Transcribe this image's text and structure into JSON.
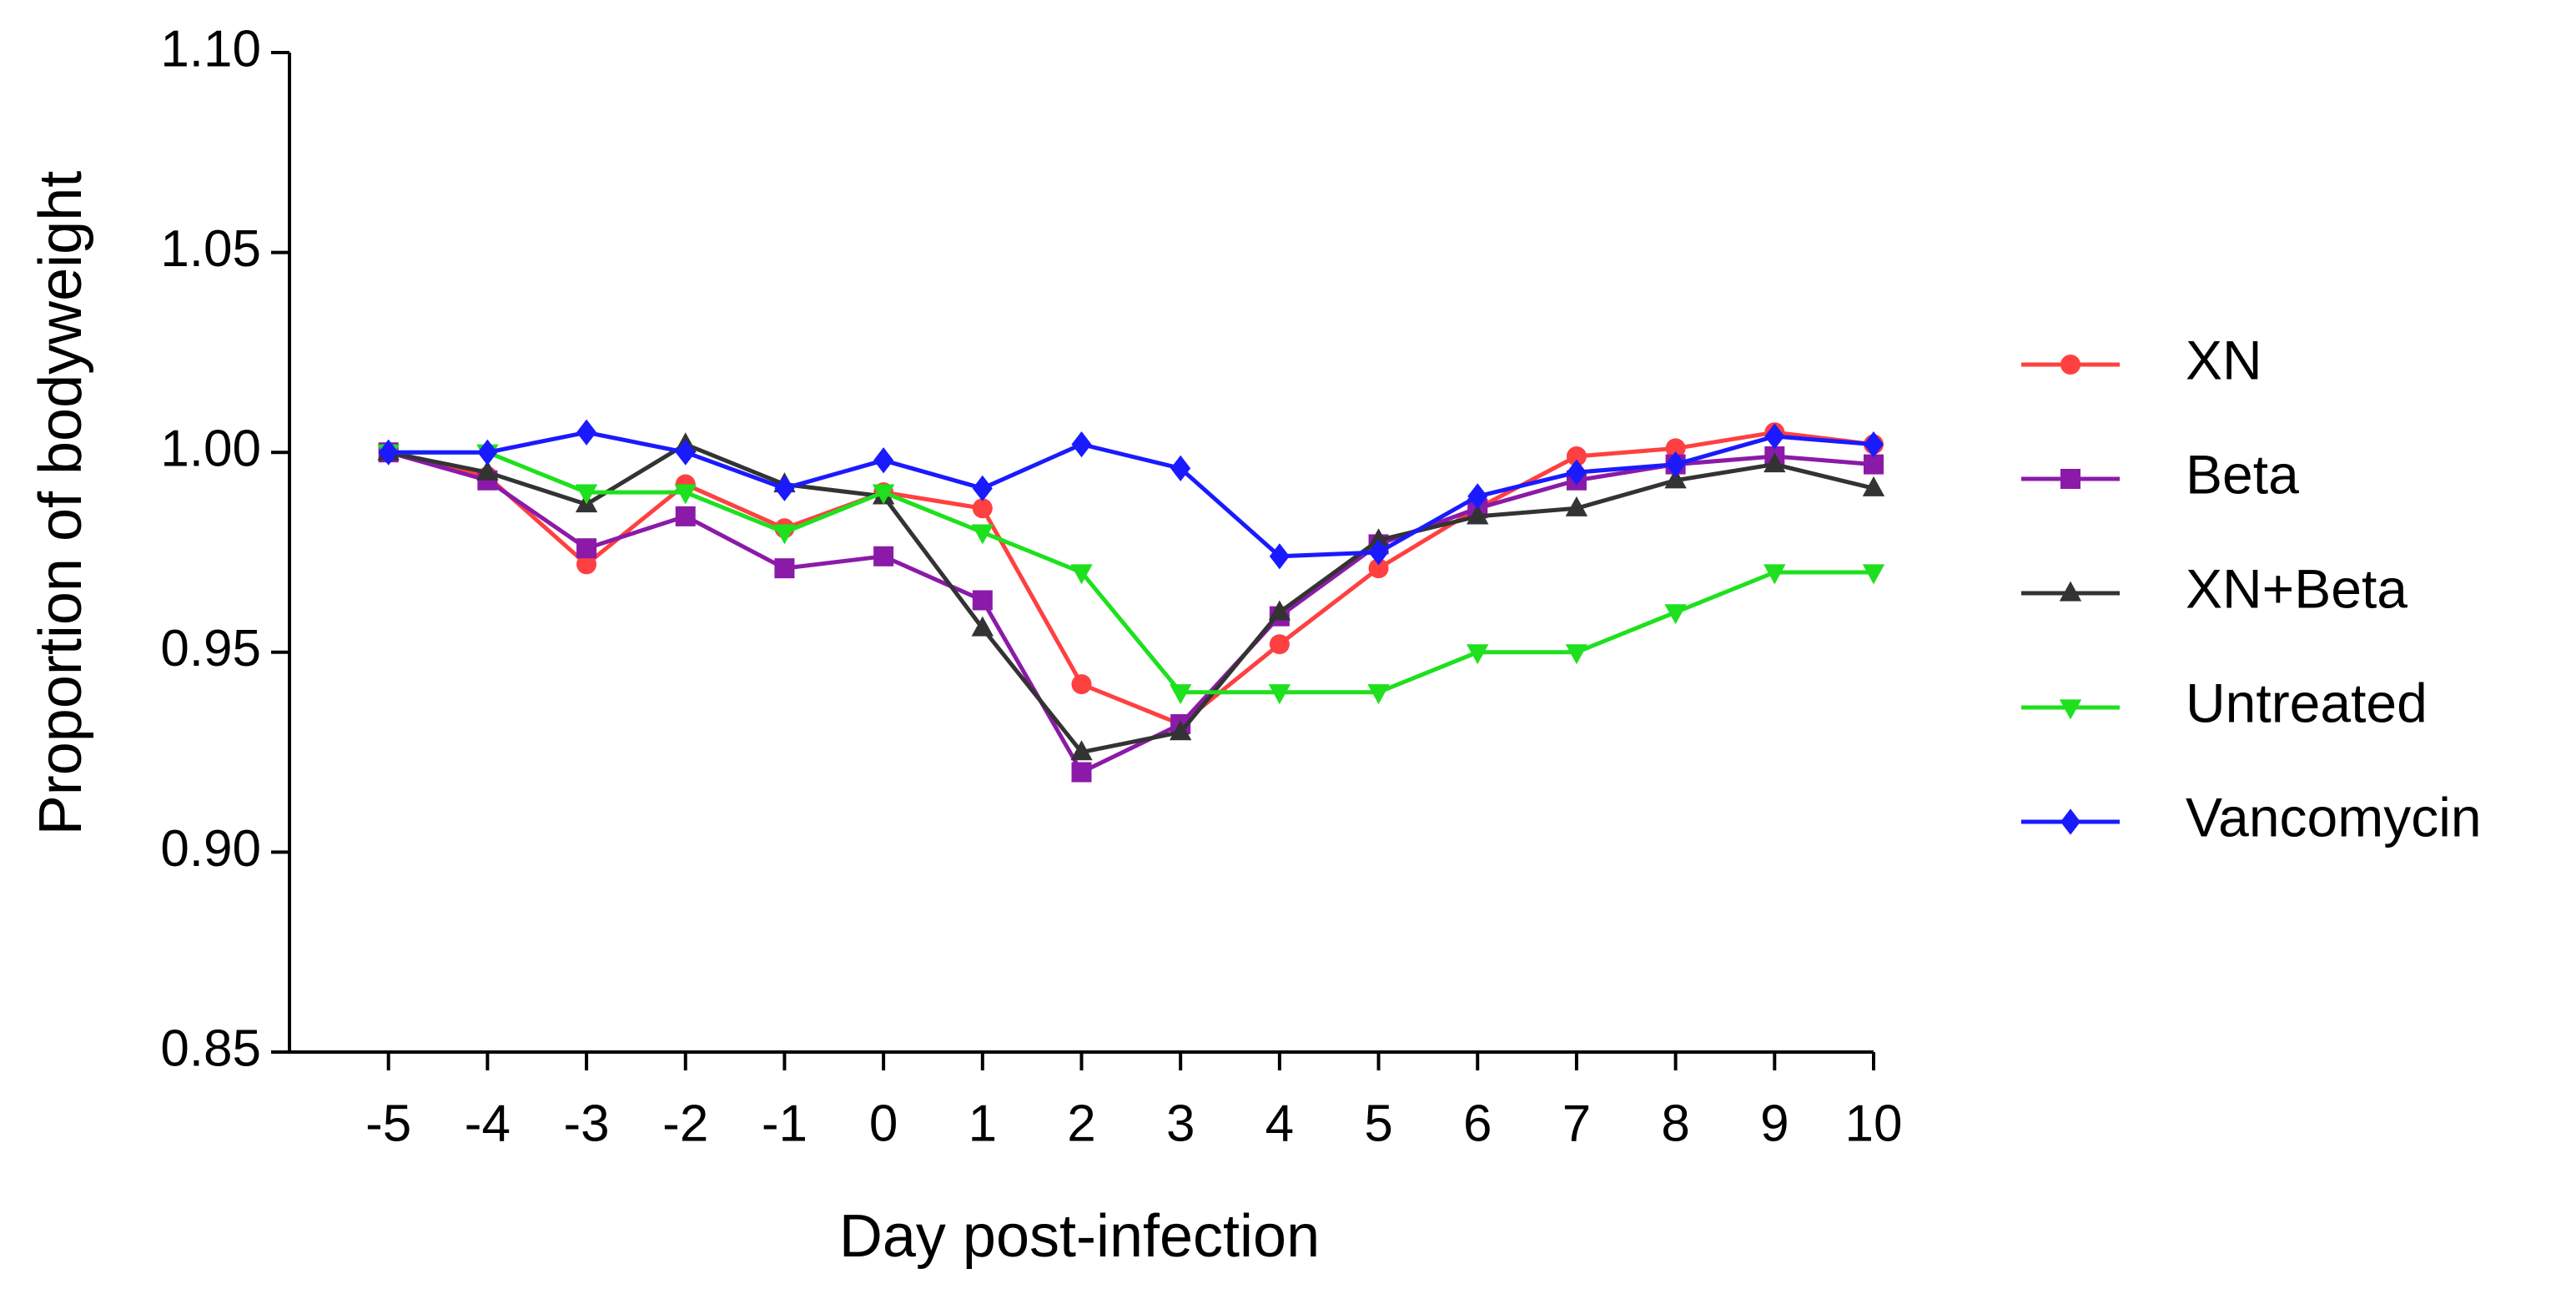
{
  "chart_data": {
    "type": "line",
    "x_label": "Day post-infection",
    "y_label": "Proportion of bodyweight",
    "x": [
      -5,
      -4,
      -3,
      -2,
      -1,
      0,
      1,
      2,
      3,
      4,
      5,
      6,
      7,
      8,
      9,
      10
    ],
    "xlim": [
      -6,
      10
    ],
    "xticks": [
      -5,
      -4,
      -3,
      -2,
      -1,
      0,
      1,
      2,
      3,
      4,
      5,
      6,
      7,
      8,
      9,
      10
    ],
    "ylim": [
      0.85,
      1.1
    ],
    "yticks": [
      0.85,
      {
        "value": 0.9,
        "label": "0.90"
      },
      0.95,
      {
        "value": 1.0,
        "label": "1.00"
      },
      1.05,
      {
        "value": 1.1,
        "label": "1.10"
      }
    ],
    "legend": "right",
    "series": [
      {
        "name": "XN",
        "color": "#ff4040",
        "marker": "circle",
        "values": [
          1.0,
          0.994,
          0.972,
          0.992,
          0.981,
          0.99,
          0.986,
          0.942,
          0.932,
          0.952,
          0.971,
          0.986,
          0.999,
          1.001,
          1.005,
          1.002
        ]
      },
      {
        "name": "Beta",
        "color": "#8b1aa8",
        "marker": "square",
        "values": [
          1.0,
          0.993,
          0.976,
          0.984,
          0.971,
          0.974,
          0.963,
          0.92,
          0.932,
          0.959,
          0.977,
          0.986,
          0.993,
          0.997,
          0.999,
          0.997
        ]
      },
      {
        "name": "XN+Beta",
        "color": "#333333",
        "marker": "triangle-up",
        "values": [
          1.0,
          0.995,
          0.987,
          1.002,
          0.992,
          0.989,
          0.956,
          0.925,
          0.93,
          0.96,
          0.978,
          0.984,
          0.986,
          0.993,
          0.997,
          0.991
        ]
      },
      {
        "name": "Untreated",
        "color": "#1ee01e",
        "marker": "triangle-down",
        "values": [
          1.0,
          1.0,
          0.99,
          0.99,
          0.98,
          0.99,
          0.98,
          0.97,
          0.94,
          0.94,
          0.94,
          0.95,
          0.95,
          0.96,
          0.97,
          0.97
        ]
      },
      {
        "name": "Vancomycin",
        "color": "#1a1aff",
        "marker": "diamond",
        "values": [
          1.0,
          1.0,
          1.005,
          1.0,
          0.991,
          0.998,
          0.991,
          1.002,
          0.996,
          0.974,
          0.975,
          0.989,
          0.995,
          0.997,
          1.004,
          1.002
        ]
      }
    ]
  }
}
